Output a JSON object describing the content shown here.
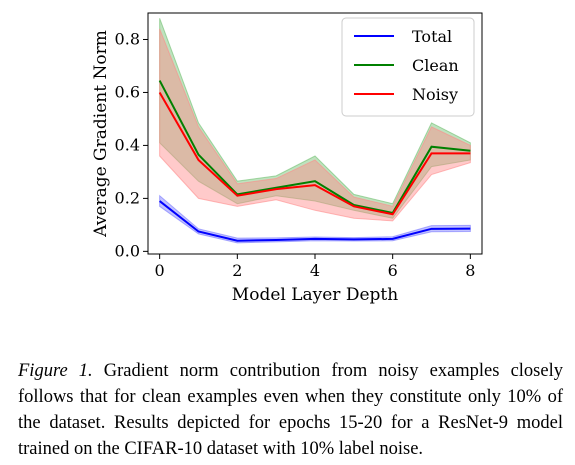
{
  "chart_data": {
    "type": "line",
    "title": "",
    "xlabel": "Model Layer Depth",
    "ylabel": "Average Gradient Norm",
    "xlim": [
      -0.3,
      8.3
    ],
    "ylim": [
      -0.01,
      0.9
    ],
    "xticks": [
      0,
      2,
      4,
      6,
      8
    ],
    "yticks": [
      0.0,
      0.2,
      0.4,
      0.6,
      0.8
    ],
    "xtick_labels": [
      "0",
      "2",
      "4",
      "6",
      "8"
    ],
    "ytick_labels": [
      "0.0",
      "0.2",
      "0.4",
      "0.6",
      "0.8"
    ],
    "legend_position": "top-right",
    "grid": false,
    "x": [
      0,
      1,
      2,
      3,
      4,
      5,
      6,
      7,
      8
    ],
    "series": [
      {
        "name": "Total",
        "color": "#0000ff",
        "fill_color": "#7777ff",
        "values": [
          0.19,
          0.075,
          0.04,
          0.043,
          0.047,
          0.045,
          0.047,
          0.085,
          0.086
        ],
        "band_low": [
          0.17,
          0.066,
          0.032,
          0.036,
          0.04,
          0.039,
          0.04,
          0.074,
          0.075
        ],
        "band_high": [
          0.21,
          0.085,
          0.05,
          0.051,
          0.054,
          0.052,
          0.055,
          0.097,
          0.098
        ]
      },
      {
        "name": "Clean",
        "color": "#008000",
        "fill_color": "#6fbf6f",
        "values": [
          0.645,
          0.365,
          0.215,
          0.24,
          0.265,
          0.175,
          0.145,
          0.395,
          0.38
        ],
        "band_low": [
          0.41,
          0.265,
          0.18,
          0.21,
          0.19,
          0.155,
          0.125,
          0.32,
          0.345
        ],
        "band_high": [
          0.88,
          0.485,
          0.265,
          0.285,
          0.36,
          0.215,
          0.18,
          0.485,
          0.41
        ]
      },
      {
        "name": "Noisy",
        "color": "#ff0000",
        "fill_color": "#ff8a8a",
        "values": [
          0.6,
          0.345,
          0.21,
          0.235,
          0.25,
          0.17,
          0.14,
          0.37,
          0.37
        ],
        "band_low": [
          0.36,
          0.2,
          0.17,
          0.195,
          0.155,
          0.125,
          0.115,
          0.29,
          0.335
        ],
        "band_high": [
          0.84,
          0.47,
          0.255,
          0.275,
          0.345,
          0.205,
          0.17,
          0.47,
          0.4
        ]
      }
    ]
  },
  "caption": {
    "label": "Figure 1.",
    "text": " Gradient norm contribution from noisy examples closely follows that for clean examples even when they constitute only 10% of the dataset. Results depicted for epochs 15-20 for a ResNet-9 model trained on the CIFAR-10 dataset with 10% label noise."
  }
}
